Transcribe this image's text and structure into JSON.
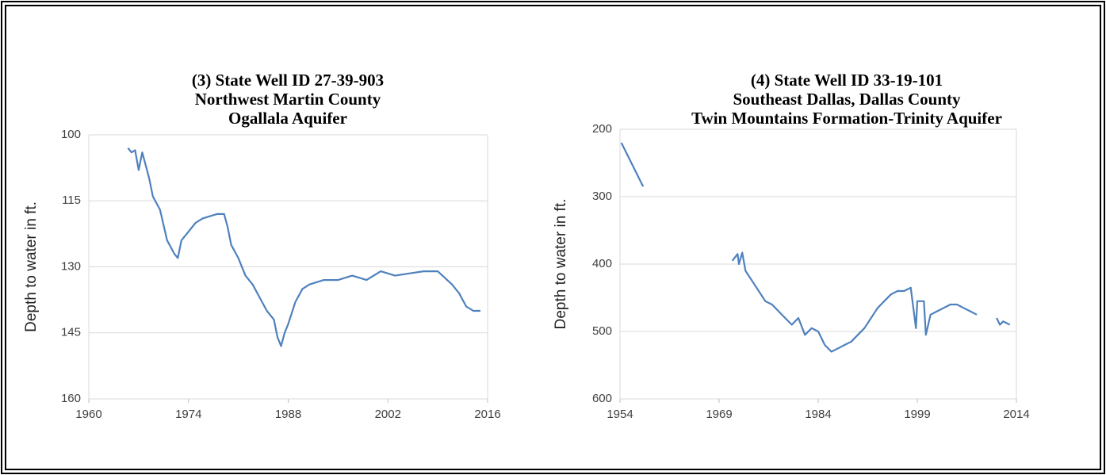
{
  "chart_data": [
    {
      "type": "line",
      "title": [
        "(3) State Well ID 27-39-903",
        "Northwest Martin County",
        "Ogallala Aquifer"
      ],
      "y_label": "Depth to water in ft.",
      "y_inverted": true,
      "grid": true,
      "xlim": [
        1960,
        2016
      ],
      "xticks": [
        1960,
        1974,
        1988,
        2002,
        2016
      ],
      "ylim": [
        100,
        160
      ],
      "yticks": [
        100,
        115,
        130,
        145,
        160
      ],
      "x": [
        1965.5,
        1966,
        1966.5,
        1967,
        1967.5,
        1968,
        1968.5,
        1969,
        1970,
        1971,
        1972,
        1972.5,
        1973,
        1974,
        1975,
        1976,
        1977,
        1978,
        1979,
        1979.5,
        1980,
        1981,
        1982,
        1983,
        1984,
        1985,
        1986,
        1986.5,
        1987,
        1987.5,
        1988,
        1989,
        1990,
        1991,
        1993,
        1995,
        1997,
        1999,
        2001,
        2003,
        2005,
        2007,
        2009,
        2011,
        2012,
        2013,
        2014,
        2015
      ],
      "series": [
        {
          "color": "#4f81bd",
          "values": [
            103,
            104,
            103.5,
            108,
            104,
            107,
            110,
            114,
            117,
            124,
            127,
            128,
            124,
            122,
            120,
            119,
            118.5,
            118,
            118,
            121,
            125,
            128,
            132,
            134,
            137,
            140,
            142,
            146,
            148,
            145,
            143,
            138,
            135,
            134,
            133,
            133,
            132,
            133,
            131,
            132,
            131.5,
            131,
            131,
            134,
            136,
            139,
            140,
            140
          ]
        }
      ]
    },
    {
      "type": "line",
      "title": [
        "(4) State Well ID 33-19-101",
        "Southeast Dallas, Dallas County",
        "Twin Mountains Formation-Trinity Aquifer"
      ],
      "y_label": "Depth to water in ft.",
      "y_inverted": true,
      "grid": true,
      "xlim": [
        1954,
        2014
      ],
      "xticks": [
        1954,
        1969,
        1984,
        1999,
        2014
      ],
      "ylim": [
        200,
        600
      ],
      "yticks": [
        200,
        300,
        400,
        500,
        600
      ],
      "x": [
        1954.2,
        1957.5,
        1964,
        1971,
        1971.8,
        1972,
        1972.5,
        1973,
        1974,
        1975,
        1976,
        1977,
        1978,
        1979,
        1980,
        1981,
        1982,
        1983,
        1984,
        1985,
        1986,
        1987,
        1988,
        1989,
        1990,
        1991,
        1992,
        1993,
        1994,
        1995,
        1996,
        1997,
        1998,
        1998.8,
        1999,
        2000,
        2000.3,
        2001,
        2002,
        2003,
        2004,
        2005,
        2006,
        2007,
        2008,
        2010,
        2011,
        2011.5,
        2012,
        2013
      ],
      "series": [
        {
          "color": "#4f81bd",
          "values": [
            220,
            285,
            null,
            395,
            385,
            400,
            383,
            410,
            425,
            440,
            455,
            460,
            470,
            480,
            490,
            480,
            505,
            495,
            500,
            520,
            530,
            525,
            520,
            515,
            505,
            495,
            480,
            465,
            455,
            445,
            440,
            440,
            435,
            495,
            455,
            455,
            505,
            475,
            470,
            465,
            460,
            460,
            465,
            470,
            475,
            null,
            480,
            490,
            485,
            490
          ]
        }
      ]
    }
  ]
}
